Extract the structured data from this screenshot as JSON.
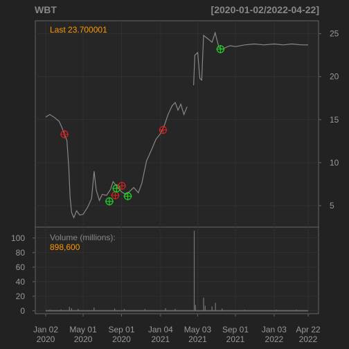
{
  "chart_data": {
    "type": "line",
    "ticker": "WBT",
    "date_range": "[2020-01-02/2022-04-22]",
    "last_label": "Last 23.700001",
    "volume_title": "Volume (millions):",
    "volume_last": "898,600",
    "x_ticks": [
      {
        "date": "2020-01-02",
        "line1": "Jan 02",
        "line2": "2020"
      },
      {
        "date": "2020-05-01",
        "line1": "May 01",
        "line2": "2020"
      },
      {
        "date": "2020-09-01",
        "line1": "Sep 01",
        "line2": "2020"
      },
      {
        "date": "2021-01-04",
        "line1": "Jan 04",
        "line2": "2021"
      },
      {
        "date": "2021-05-03",
        "line1": "May 03",
        "line2": "2021"
      },
      {
        "date": "2021-09-01",
        "line1": "Sep 01",
        "line2": "2021"
      },
      {
        "date": "2022-01-03",
        "line1": "Jan 03",
        "line2": "2022"
      },
      {
        "date": "2022-04-22",
        "line1": "Apr 22",
        "line2": "2022"
      }
    ],
    "price_axis": {
      "ticks": [
        5,
        10,
        15,
        20,
        25
      ],
      "range": [
        2.5,
        26.5
      ]
    },
    "volume_axis": {
      "ticks": [
        0,
        20,
        40,
        60,
        80,
        100
      ],
      "range": [
        -4,
        115
      ]
    },
    "price": [
      [
        "2020-01-02",
        15.3
      ],
      [
        "2020-01-15",
        15.6
      ],
      [
        "2020-02-01",
        15.2
      ],
      [
        "2020-02-14",
        14.8
      ],
      [
        "2020-02-24",
        14.0
      ],
      [
        "2020-03-02",
        13.3
      ],
      [
        "2020-03-10",
        12.6
      ],
      [
        "2020-03-16",
        9.5
      ],
      [
        "2020-03-20",
        6.0
      ],
      [
        "2020-03-25",
        4.2
      ],
      [
        "2020-04-01",
        3.6
      ],
      [
        "2020-04-10",
        4.4
      ],
      [
        "2020-04-20",
        3.9
      ],
      [
        "2020-05-01",
        4.0
      ],
      [
        "2020-05-15",
        4.8
      ],
      [
        "2020-05-28",
        5.8
      ],
      [
        "2020-06-05",
        9.0
      ],
      [
        "2020-06-12",
        6.8
      ],
      [
        "2020-06-22",
        5.6
      ],
      [
        "2020-07-01",
        6.3
      ],
      [
        "2020-07-15",
        6.2
      ],
      [
        "2020-07-28",
        6.9
      ],
      [
        "2020-08-05",
        7.8
      ],
      [
        "2020-08-18",
        7.2
      ],
      [
        "2020-09-01",
        6.6
      ],
      [
        "2020-09-15",
        6.3
      ],
      [
        "2020-09-28",
        6.7
      ],
      [
        "2020-10-10",
        7.1
      ],
      [
        "2020-10-25",
        6.5
      ],
      [
        "2020-11-05",
        7.6
      ],
      [
        "2020-11-20",
        10.2
      ],
      [
        "2020-12-05",
        11.4
      ],
      [
        "2020-12-20",
        12.7
      ],
      [
        "2021-01-04",
        13.4
      ],
      [
        "2021-01-15",
        14.2
      ],
      [
        "2021-01-28",
        15.6
      ],
      [
        "2021-02-10",
        16.6
      ],
      [
        "2021-02-20",
        17.0
      ],
      [
        "2021-03-01",
        16.1
      ],
      [
        "2021-03-10",
        16.8
      ],
      [
        "2021-03-20",
        15.6
      ],
      [
        "2021-03-30",
        16.5
      ],
      [
        "2021-04-10",
        null
      ],
      [
        "2021-04-20",
        19.0
      ],
      [
        "2021-04-24",
        22.5
      ],
      [
        "2021-05-03",
        22.8
      ],
      [
        "2021-05-10",
        19.8
      ],
      [
        "2021-05-16",
        19.6
      ],
      [
        "2021-05-22",
        24.8
      ],
      [
        "2021-06-05",
        24.4
      ],
      [
        "2021-06-18",
        24.0
      ],
      [
        "2021-06-28",
        25.1
      ],
      [
        "2021-07-10",
        23.4
      ],
      [
        "2021-07-20",
        23.2
      ],
      [
        "2021-08-01",
        23.4
      ],
      [
        "2021-08-15",
        23.6
      ],
      [
        "2021-09-01",
        23.5
      ],
      [
        "2021-10-01",
        23.7
      ],
      [
        "2021-11-01",
        23.8
      ],
      [
        "2021-12-01",
        23.7
      ],
      [
        "2022-01-03",
        23.8
      ],
      [
        "2022-02-01",
        23.7
      ],
      [
        "2022-03-01",
        23.8
      ],
      [
        "2022-04-01",
        23.7
      ],
      [
        "2022-04-22",
        23.7
      ]
    ],
    "markers": [
      {
        "date": "2020-03-02",
        "price": 13.3,
        "color": "#cc2222"
      },
      {
        "date": "2020-07-24",
        "price": 5.5,
        "color": "#22cc22"
      },
      {
        "date": "2020-08-12",
        "price": 6.2,
        "color": "#cc2222"
      },
      {
        "date": "2020-08-16",
        "price": 7.0,
        "color": "#22cc22"
      },
      {
        "date": "2020-09-02",
        "price": 7.3,
        "color": "#cc2222"
      },
      {
        "date": "2020-09-21",
        "price": 6.1,
        "color": "#22cc22"
      },
      {
        "date": "2021-01-12",
        "price": 13.8,
        "color": "#cc2222"
      },
      {
        "date": "2021-07-15",
        "price": 23.2,
        "color": "#22cc22"
      }
    ],
    "volume": [
      [
        "2020-01-15",
        1.5
      ],
      [
        "2020-02-20",
        2.0
      ],
      [
        "2020-03-18",
        5.5
      ],
      [
        "2020-03-25",
        3.5
      ],
      [
        "2020-04-15",
        2.5
      ],
      [
        "2020-06-05",
        4.5
      ],
      [
        "2020-08-10",
        3.0
      ],
      [
        "2020-09-10",
        2.5
      ],
      [
        "2020-11-15",
        2.5
      ],
      [
        "2021-01-20",
        3.5
      ],
      [
        "2021-02-20",
        2.5
      ],
      [
        "2021-04-22",
        110
      ],
      [
        "2021-04-26",
        8.0
      ],
      [
        "2021-05-22",
        18.0
      ],
      [
        "2021-05-27",
        7.0
      ],
      [
        "2021-06-18",
        6.0
      ],
      [
        "2021-06-29",
        11.0
      ],
      [
        "2021-07-20",
        3.0
      ],
      [
        "2021-10-01",
        1.5
      ],
      [
        "2022-01-10",
        1.5
      ],
      [
        "2022-03-15",
        1.5
      ]
    ],
    "colors": {
      "background": "#222222",
      "panel": "#262626",
      "line": "#888888",
      "axis_text": "#999999",
      "title": "#888888",
      "accent": "#ff9900"
    }
  }
}
